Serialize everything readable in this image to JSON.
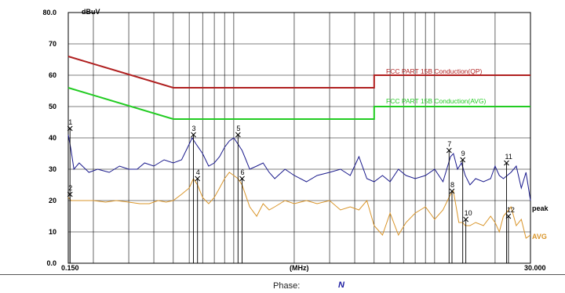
{
  "chart_data": {
    "type": "line",
    "ylabel": "dBuV",
    "xlabel": "(MHz)",
    "x_scale": "log",
    "xlim": [
      0.15,
      30.0
    ],
    "ylim": [
      0.0,
      80.0
    ],
    "x_tick_labels": [
      "0.150",
      "30.000"
    ],
    "y_ticks": [
      0,
      10,
      20,
      30,
      40,
      50,
      60,
      70,
      80
    ],
    "y_tick_labels": [
      "0.0",
      "10",
      "20",
      "30",
      "40",
      "50",
      "60",
      "70",
      "80.0"
    ],
    "grid": true,
    "limits": [
      {
        "name": "FCC PART 15B Conduction(QP)",
        "color": "#b02020",
        "x": [
          0.15,
          0.5,
          5.0,
          5.0,
          30.0
        ],
        "y": [
          66,
          56,
          56,
          60,
          60
        ]
      },
      {
        "name": "FCC PART 15B Conduction(AVG)",
        "color": "#22cc22",
        "x": [
          0.15,
          0.5,
          5.0,
          5.0,
          30.0
        ],
        "y": [
          56,
          46,
          46,
          50,
          50
        ]
      }
    ],
    "series": [
      {
        "name": "peak",
        "color": "#1a1a8c",
        "x": [
          0.15,
          0.155,
          0.16,
          0.17,
          0.19,
          0.21,
          0.24,
          0.27,
          0.3,
          0.33,
          0.36,
          0.4,
          0.45,
          0.5,
          0.55,
          0.6,
          0.62,
          0.65,
          0.7,
          0.75,
          0.8,
          0.85,
          0.9,
          0.95,
          1.0,
          1.05,
          1.1,
          1.15,
          1.2,
          1.3,
          1.4,
          1.5,
          1.6,
          1.8,
          2.0,
          2.3,
          2.6,
          3.0,
          3.4,
          3.8,
          4.2,
          4.6,
          5.0,
          5.5,
          6.0,
          6.6,
          7.2,
          8.0,
          9.0,
          10.0,
          11.0,
          12.0,
          12.4,
          13.0,
          13.6,
          14.2,
          15.0,
          16.0,
          17.5,
          19.0,
          20.0,
          21.0,
          22.0,
          24.0,
          25.5,
          27.0,
          28.5,
          30.0
        ],
        "y": [
          41,
          36,
          30,
          32,
          29,
          30,
          29,
          31,
          30,
          30,
          32,
          31,
          33,
          32,
          33,
          38,
          40,
          38,
          35,
          31,
          32,
          34,
          37,
          39,
          40,
          38,
          36,
          33,
          30,
          31,
          32,
          29,
          27,
          30,
          28,
          26,
          28,
          29,
          30,
          28,
          34,
          27,
          26,
          28,
          26,
          30,
          28,
          27,
          28,
          30,
          26,
          34,
          35,
          30,
          32,
          28,
          25,
          27,
          26,
          27,
          31,
          28,
          27,
          29,
          31,
          24,
          29,
          20
        ]
      },
      {
        "name": "AVG",
        "color": "#d9952a",
        "x": [
          0.15,
          0.155,
          0.16,
          0.18,
          0.2,
          0.23,
          0.26,
          0.3,
          0.34,
          0.38,
          0.42,
          0.46,
          0.5,
          0.55,
          0.6,
          0.63,
          0.66,
          0.7,
          0.75,
          0.8,
          0.85,
          0.9,
          0.95,
          1.0,
          1.05,
          1.1,
          1.2,
          1.3,
          1.4,
          1.5,
          1.6,
          1.8,
          2.0,
          2.3,
          2.6,
          3.0,
          3.4,
          3.8,
          4.2,
          4.6,
          5.0,
          5.5,
          6.0,
          6.6,
          7.2,
          8.0,
          9.0,
          10.0,
          11.0,
          12.0,
          12.4,
          12.8,
          13.2,
          13.8,
          14.2,
          15.0,
          16.0,
          17.5,
          19.0,
          20.0,
          21.0,
          22.0,
          24.0,
          25.5,
          27.0,
          28.5,
          30.0
        ],
        "y": [
          21,
          20,
          20,
          20,
          20,
          19.5,
          20,
          19.5,
          19,
          19,
          20,
          19.5,
          20,
          22,
          24,
          27,
          25,
          21,
          19,
          21,
          24,
          27,
          29,
          28,
          27,
          25,
          18,
          15,
          19,
          17,
          18,
          20,
          19,
          20,
          19,
          20,
          17,
          18,
          17,
          20,
          12,
          9,
          16,
          9,
          13,
          16,
          18,
          14,
          17,
          22,
          23,
          18,
          13,
          13,
          12,
          12,
          13,
          12,
          15,
          13,
          10,
          15,
          18,
          12,
          14,
          8,
          9
        ]
      }
    ],
    "markers": [
      {
        "label": "1",
        "x": 0.153,
        "y": 43
      },
      {
        "label": "2",
        "x": 0.153,
        "y": 22
      },
      {
        "label": "3",
        "x": 0.63,
        "y": 41
      },
      {
        "label": "4",
        "x": 0.66,
        "y": 27
      },
      {
        "label": "5",
        "x": 1.05,
        "y": 41
      },
      {
        "label": "6",
        "x": 1.1,
        "y": 27
      },
      {
        "label": "7",
        "x": 11.8,
        "y": 36
      },
      {
        "label": "8",
        "x": 12.2,
        "y": 23
      },
      {
        "label": "9",
        "x": 13.8,
        "y": 33
      },
      {
        "label": "10",
        "x": 14.3,
        "y": 14
      },
      {
        "label": "11",
        "x": 22.8,
        "y": 32
      },
      {
        "label": "12",
        "x": 23.3,
        "y": 15
      }
    ],
    "series_end_labels": {
      "peak": "peak",
      "AVG": "AVG"
    }
  },
  "footer": {
    "phase_label": "Phase:",
    "phase_value": "N"
  }
}
